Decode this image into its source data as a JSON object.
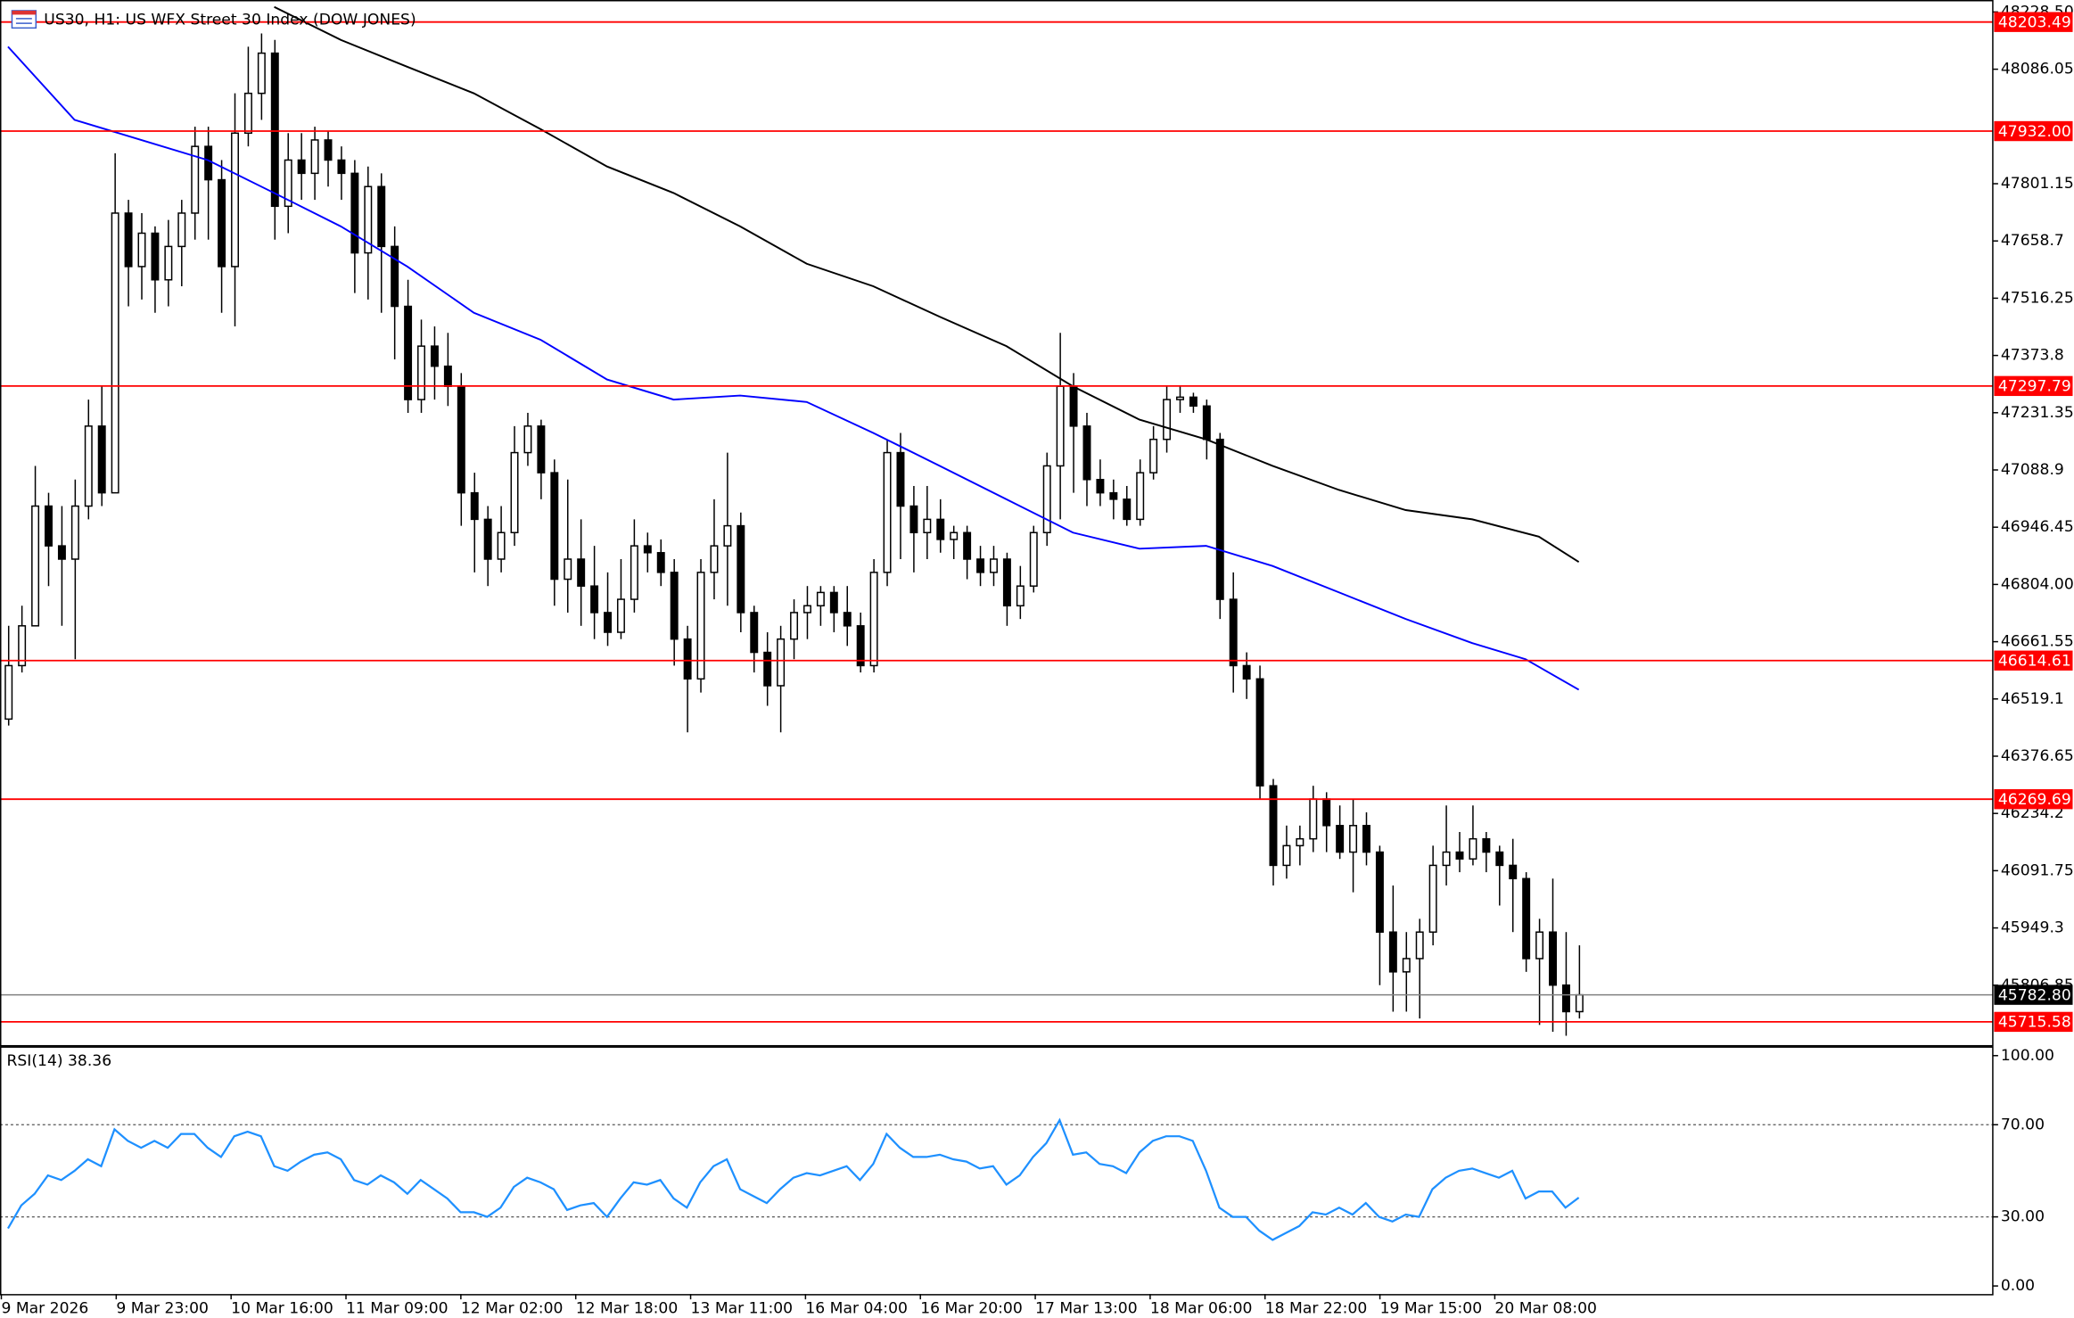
{
  "chart_data": [
    {
      "type": "candlestick",
      "title": "US30, H1:  US WFX Street 30 Index (DOW JONES)",
      "ylim": [
        45657.8,
        48241.7
      ],
      "yticks": [
        {
          "value": 48228.5,
          "label": "48228.50"
        },
        48086.05,
        47801.15,
        47658.7,
        47516.25,
        47373.8,
        47231.35,
        47088.9,
        46946.45,
        {
          "value": 46804,
          "label": "46804.00"
        },
        46661.55,
        46519.1,
        46376.65,
        46234.2,
        46091.75,
        45949.3,
        45806.85
      ],
      "xtick_labels": [
        "9 Mar 2026",
        "9 Mar 23:00",
        "10 Mar 16:00",
        "11 Mar 09:00",
        "12 Mar 02:00",
        "12 Mar 18:00",
        "13 Mar 11:00",
        "16 Mar 04:00",
        "16 Mar 20:00",
        "17 Mar 13:00",
        "18 Mar 06:00",
        "18 Mar 22:00",
        "19 Mar 15:00",
        "20 Mar 08:00"
      ],
      "levels_color": "#ff0000",
      "levels": [
        {
          "value": 48203.49,
          "label": "48203.49"
        },
        {
          "value": 47932,
          "label": "47932.00"
        },
        {
          "value": 47297.79,
          "label": "47297.79"
        },
        {
          "value": 46614.61,
          "label": "46614.61"
        },
        {
          "value": 46269.69,
          "label": "46269.69"
        },
        {
          "value": 45715.58,
          "label": "45715.58"
        }
      ],
      "current_price": {
        "value": 45782.8,
        "label": "45782.80"
      },
      "ma_lines": [
        {
          "color": "#0000ff",
          "x": [
            0,
            5,
            10,
            15,
            20,
            25,
            30,
            35,
            40,
            45,
            50,
            55,
            60,
            65,
            70,
            75,
            80,
            85,
            90,
            95,
            100,
            105,
            110,
            114,
            118
          ],
          "values": [
            48142,
            47960,
            47910,
            47860,
            47778,
            47695,
            47595,
            47480,
            47413,
            47314,
            47264,
            47274,
            47258,
            47181,
            47099,
            47016,
            46933,
            46893,
            46900,
            46850,
            46784,
            46718,
            46658,
            46618,
            46542
          ]
        },
        {
          "color": "#000000",
          "x": [
            20,
            25,
            30,
            35,
            40,
            45,
            50,
            55,
            60,
            65,
            70,
            75,
            80,
            85,
            90,
            95,
            100,
            105,
            110,
            115,
            118
          ],
          "values": [
            48241,
            48159,
            48092,
            48026,
            47937,
            47844,
            47778,
            47695,
            47602,
            47546,
            47470,
            47397,
            47297,
            47214,
            47165,
            47099,
            47039,
            46989,
            46966,
            46923,
            46860
          ]
        }
      ],
      "candles": [
        [
          46469,
          46701,
          46453,
          46602
        ],
        [
          46602,
          46751,
          46585,
          46701
        ],
        [
          46701,
          47099,
          46701,
          46999
        ],
        [
          46999,
          47032,
          46800,
          46900
        ],
        [
          46900,
          46999,
          46701,
          46867
        ],
        [
          46867,
          47065,
          46618,
          46999
        ],
        [
          46999,
          47264,
          46966,
          47198
        ],
        [
          47198,
          47297,
          46999,
          47032
        ],
        [
          47032,
          47877,
          47032,
          47728
        ],
        [
          47728,
          47761,
          47496,
          47595
        ],
        [
          47595,
          47728,
          47513,
          47678
        ],
        [
          47678,
          47695,
          47480,
          47562
        ],
        [
          47562,
          47711,
          47496,
          47645
        ],
        [
          47645,
          47761,
          47546,
          47728
        ],
        [
          47728,
          47943,
          47662,
          47894
        ],
        [
          47894,
          47943,
          47662,
          47811
        ],
        [
          47811,
          47860,
          47480,
          47595
        ],
        [
          47595,
          48026,
          47446,
          47927
        ],
        [
          47927,
          48142,
          47894,
          48026
        ],
        [
          48026,
          48175,
          47960,
          48126
        ],
        [
          48126,
          48159,
          47662,
          47745
        ],
        [
          47745,
          47927,
          47678,
          47860
        ],
        [
          47860,
          47927,
          47761,
          47827
        ],
        [
          47827,
          47943,
          47761,
          47910
        ],
        [
          47910,
          47933,
          47794,
          47860
        ],
        [
          47860,
          47894,
          47761,
          47827
        ],
        [
          47827,
          47860,
          47529,
          47629
        ],
        [
          47629,
          47844,
          47513,
          47794
        ],
        [
          47794,
          47827,
          47480,
          47645
        ],
        [
          47645,
          47695,
          47364,
          47496
        ],
        [
          47496,
          47562,
          47231,
          47264
        ],
        [
          47264,
          47463,
          47231,
          47397
        ],
        [
          47397,
          47446,
          47264,
          47347
        ],
        [
          47347,
          47430,
          47248,
          47297
        ],
        [
          47297,
          47330,
          46950,
          47032
        ],
        [
          47032,
          47082,
          46834,
          46966
        ],
        [
          46966,
          46999,
          46800,
          46867
        ],
        [
          46867,
          46999,
          46834,
          46933
        ],
        [
          46933,
          47198,
          46900,
          47132
        ],
        [
          47132,
          47231,
          47099,
          47198
        ],
        [
          47198,
          47214,
          47016,
          47082
        ],
        [
          47082,
          47115,
          46751,
          46817
        ],
        [
          46817,
          47065,
          46734,
          46867
        ],
        [
          46867,
          46966,
          46701,
          46800
        ],
        [
          46800,
          46900,
          46668,
          46734
        ],
        [
          46734,
          46834,
          46651,
          46685
        ],
        [
          46685,
          46867,
          46668,
          46767
        ],
        [
          46767,
          46966,
          46734,
          46900
        ],
        [
          46900,
          46933,
          46834,
          46883
        ],
        [
          46883,
          46916,
          46800,
          46834
        ],
        [
          46834,
          46867,
          46602,
          46668
        ],
        [
          46668,
          46701,
          46436,
          46569
        ],
        [
          46569,
          46867,
          46535,
          46834
        ],
        [
          46834,
          47016,
          46767,
          46900
        ],
        [
          46900,
          47132,
          46751,
          46950
        ],
        [
          46950,
          46983,
          46685,
          46734
        ],
        [
          46734,
          46751,
          46585,
          46635
        ],
        [
          46635,
          46685,
          46502,
          46552
        ],
        [
          46552,
          46701,
          46436,
          46668
        ],
        [
          46668,
          46767,
          46618,
          46734
        ],
        [
          46734,
          46800,
          46668,
          46751
        ],
        [
          46751,
          46800,
          46701,
          46784
        ],
        [
          46784,
          46800,
          46685,
          46734
        ],
        [
          46734,
          46800,
          46651,
          46701
        ],
        [
          46701,
          46734,
          46585,
          46602
        ],
        [
          46602,
          46867,
          46585,
          46834
        ],
        [
          46834,
          47165,
          46800,
          47132
        ],
        [
          47132,
          47181,
          46867,
          46999
        ],
        [
          46999,
          47049,
          46834,
          46933
        ],
        [
          46933,
          47049,
          46867,
          46966
        ],
        [
          46966,
          47016,
          46883,
          46916
        ],
        [
          46916,
          46950,
          46867,
          46933
        ],
        [
          46933,
          46950,
          46817,
          46867
        ],
        [
          46867,
          46900,
          46800,
          46834
        ],
        [
          46834,
          46900,
          46800,
          46867
        ],
        [
          46867,
          46883,
          46701,
          46751
        ],
        [
          46751,
          46850,
          46718,
          46800
        ],
        [
          46800,
          46950,
          46784,
          46933
        ],
        [
          46933,
          47132,
          46900,
          47099
        ],
        [
          47099,
          47430,
          46966,
          47297
        ],
        [
          47297,
          47330,
          47032,
          47198
        ],
        [
          47198,
          47231,
          46999,
          47065
        ],
        [
          47065,
          47115,
          46999,
          47032
        ],
        [
          47032,
          47065,
          46966,
          47016
        ],
        [
          47016,
          47049,
          46950,
          46966
        ],
        [
          46966,
          47115,
          46950,
          47082
        ],
        [
          47082,
          47198,
          47065,
          47165
        ],
        [
          47165,
          47297,
          47132,
          47264
        ],
        [
          47264,
          47297,
          47231,
          47270
        ],
        [
          47270,
          47281,
          47231,
          47248
        ],
        [
          47248,
          47264,
          47115,
          47165
        ],
        [
          47165,
          47181,
          46718,
          46767
        ],
        [
          46767,
          46834,
          46535,
          46602
        ],
        [
          46602,
          46635,
          46519,
          46569
        ],
        [
          46569,
          46602,
          46270,
          46303
        ],
        [
          46303,
          46320,
          46055,
          46105
        ],
        [
          46105,
          46204,
          46072,
          46154
        ],
        [
          46154,
          46204,
          46105,
          46171
        ],
        [
          46171,
          46303,
          46138,
          46270
        ],
        [
          46270,
          46287,
          46138,
          46204
        ],
        [
          46204,
          46254,
          46121,
          46138
        ],
        [
          46138,
          46270,
          46038,
          46204
        ],
        [
          46204,
          46237,
          46105,
          46138
        ],
        [
          46138,
          46154,
          45807,
          45939
        ],
        [
          45939,
          46055,
          45741,
          45840
        ],
        [
          45840,
          45939,
          45741,
          45873
        ],
        [
          45873,
          45972,
          45724,
          45939
        ],
        [
          45939,
          46154,
          45906,
          46105
        ],
        [
          46105,
          46254,
          46055,
          46138
        ],
        [
          46138,
          46188,
          46088,
          46121
        ],
        [
          46121,
          46254,
          46105,
          46171
        ],
        [
          46171,
          46188,
          46088,
          46138
        ],
        [
          46138,
          46154,
          46005,
          46105
        ],
        [
          46105,
          46171,
          45939,
          46072
        ],
        [
          46072,
          46088,
          45840,
          45873
        ],
        [
          45873,
          45972,
          45708,
          45939
        ],
        [
          45939,
          46072,
          45691,
          45807
        ],
        [
          45807,
          45939,
          45681,
          45741
        ],
        [
          45741,
          45906,
          45724,
          45782.8
        ]
      ]
    },
    {
      "type": "line",
      "title": "RSI(14) 38.36",
      "color": "#1e90ff",
      "ylim": [
        -3.5,
        104
      ],
      "yticks": [
        {
          "value": 100,
          "label": "100.00"
        },
        {
          "value": 70,
          "label": "70.00"
        },
        {
          "value": 30,
          "label": "30.00"
        },
        {
          "value": 0,
          "label": "0.00"
        }
      ],
      "levels": [
        70,
        30
      ],
      "values": [
        25,
        35,
        40,
        48,
        46,
        50,
        55,
        52,
        68,
        63,
        60,
        63,
        60,
        66,
        66,
        60,
        56,
        65,
        67,
        65,
        52,
        50,
        54,
        57,
        58,
        55,
        46,
        44,
        48,
        45,
        40,
        46,
        42,
        38,
        32,
        32,
        30,
        34,
        43,
        47,
        45,
        42,
        33,
        35,
        36,
        30,
        38,
        45,
        44,
        46,
        38,
        34,
        45,
        52,
        55,
        42,
        39,
        36,
        42,
        47,
        49,
        48,
        50,
        52,
        46,
        53,
        66,
        60,
        56,
        56,
        57,
        55,
        54,
        51,
        52,
        44,
        48,
        56,
        62,
        72,
        57,
        58,
        53,
        52,
        49,
        58,
        63,
        65,
        65,
        63,
        50,
        34,
        30,
        30,
        24,
        20,
        23,
        26,
        32,
        31,
        34,
        31,
        36,
        30,
        28,
        31,
        30,
        42,
        47,
        50,
        51,
        49,
        47,
        50,
        38,
        41,
        41,
        34,
        38.36
      ]
    }
  ]
}
